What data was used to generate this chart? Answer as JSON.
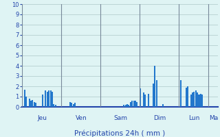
{
  "title": "Précipitations 24h ( mm )",
  "background_color": "#dff4f4",
  "grid_color": "#adc8c8",
  "bar_color": "#2277cc",
  "ylim": [
    0,
    10
  ],
  "yticks": [
    0,
    1,
    2,
    3,
    4,
    5,
    6,
    7,
    8,
    9,
    10
  ],
  "day_labels": [
    "Jeu",
    "Ven",
    "Sam",
    "Dim",
    "Lun",
    "Ma"
  ],
  "day_positions": [
    0,
    24,
    48,
    72,
    96,
    114
  ],
  "n_bars": 120,
  "values": [
    0.0,
    1.7,
    1.0,
    0.0,
    0.8,
    0.6,
    0.7,
    0.5,
    0.4,
    0.0,
    0.0,
    0.0,
    1.2,
    0.0,
    1.6,
    1.5,
    1.6,
    1.6,
    1.5,
    0.3,
    0.2,
    0.0,
    0.0,
    0.0,
    0.0,
    0.0,
    0.0,
    0.0,
    0.0,
    0.5,
    0.4,
    0.3,
    0.4,
    0.0,
    0.0,
    0.0,
    0.0,
    0.0,
    0.0,
    0.0,
    0.0,
    0.0,
    0.0,
    0.0,
    0.0,
    0.0,
    0.0,
    0.0,
    0.0,
    0.0,
    0.0,
    0.0,
    0.0,
    0.0,
    0.0,
    0.0,
    0.0,
    0.0,
    0.0,
    0.0,
    0.0,
    0.0,
    0.2,
    0.2,
    0.3,
    0.2,
    0.5,
    0.6,
    0.6,
    0.6,
    0.5,
    0.0,
    1.8,
    0.0,
    1.4,
    1.2,
    0.0,
    1.3,
    0.0,
    0.0,
    2.3,
    4.0,
    2.6,
    0.0,
    0.0,
    0.0,
    0.3,
    0.0,
    0.0,
    0.0,
    0.0,
    0.0,
    0.0,
    0.0,
    0.0,
    0.0,
    0.0,
    2.6,
    0.0,
    0.0,
    1.9,
    2.0,
    0.0,
    1.2,
    1.4,
    1.5,
    1.6,
    1.4,
    1.2,
    1.3,
    1.2,
    0.0,
    0.0,
    0.0,
    0.0,
    0.0,
    0.0,
    0.0,
    0.0,
    0.0
  ]
}
